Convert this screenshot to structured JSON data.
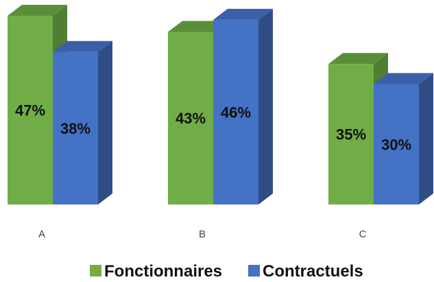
{
  "chart_data": {
    "type": "bar",
    "categories": [
      "A",
      "B",
      "C"
    ],
    "series": [
      {
        "name": "Fonctionnaires",
        "values": [
          47,
          43,
          35
        ],
        "labels": [
          "47%",
          "43%",
          "35%"
        ],
        "color": "#70AD47"
      },
      {
        "name": "Contractuels",
        "values": [
          38,
          46,
          30
        ],
        "labels": [
          "38%",
          "46%",
          "30%"
        ],
        "color": "#4472C4"
      }
    ],
    "ylim": [
      0,
      50
    ],
    "grid": false,
    "legend": "bottom",
    "style": "3d-column"
  }
}
